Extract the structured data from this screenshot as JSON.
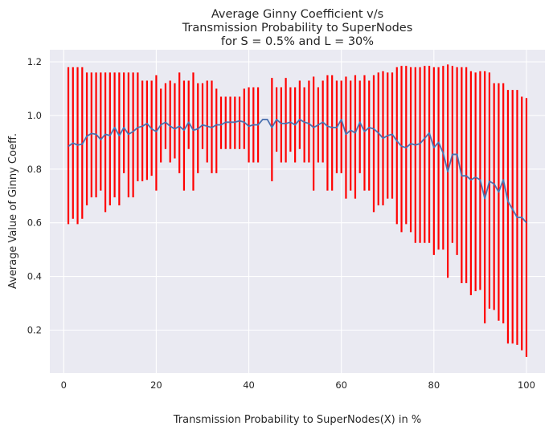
{
  "chart_data": {
    "type": "line",
    "title": [
      "Average Ginny Coefficient v/s",
      "Transmission Probability to SuperNodes",
      "for S = 0.5% and L = 30%"
    ],
    "xlabel": "Transmission Probability to SuperNodes(X) in %",
    "ylabel": "Average Value of Ginny Coeff.",
    "xlim": [
      -3,
      104
    ],
    "ylim": [
      0.04,
      1.245
    ],
    "x_ticks": [
      0,
      20,
      40,
      60,
      80,
      100
    ],
    "y_ticks": [
      0.2,
      0.4,
      0.6,
      0.8,
      1.0,
      1.2
    ],
    "x_tick_labels": [
      "0",
      "20",
      "40",
      "60",
      "80",
      "100"
    ],
    "y_tick_labels": [
      "0.2",
      "0.4",
      "0.6",
      "0.8",
      "1.0",
      "1.2"
    ],
    "grid": true,
    "colors": {
      "background": "#eaeaf2",
      "grid": "#ffffff",
      "line": "#4c72b0",
      "errorbar": "#ff0000"
    },
    "series": [
      {
        "x": [
          1,
          2,
          3,
          4,
          5,
          6,
          7,
          8,
          9,
          10,
          11,
          12,
          13,
          14,
          15,
          16,
          17,
          18,
          19,
          20,
          21,
          22,
          23,
          24,
          25,
          26,
          27,
          28,
          29,
          30,
          31,
          32,
          33,
          34,
          35,
          36,
          37,
          38,
          39,
          40,
          41,
          42,
          43,
          44,
          45,
          46,
          47,
          48,
          49,
          50,
          51,
          52,
          53,
          54,
          55,
          56,
          57,
          58,
          59,
          60,
          61,
          62,
          63,
          64,
          65,
          66,
          67,
          68,
          69,
          70,
          71,
          72,
          73,
          74,
          75,
          76,
          77,
          78,
          79,
          80,
          81,
          82,
          83,
          84,
          85,
          86,
          87,
          88,
          89,
          90,
          91,
          92,
          93,
          94,
          95,
          96,
          97,
          98,
          99,
          100
        ],
        "values": [
          0.885,
          0.897,
          0.89,
          0.893,
          0.923,
          0.933,
          0.93,
          0.91,
          0.93,
          0.925,
          0.955,
          0.925,
          0.955,
          0.93,
          0.94,
          0.955,
          0.96,
          0.97,
          0.95,
          0.94,
          0.965,
          0.975,
          0.96,
          0.95,
          0.96,
          0.945,
          0.975,
          0.945,
          0.95,
          0.965,
          0.96,
          0.955,
          0.965,
          0.965,
          0.975,
          0.975,
          0.975,
          0.98,
          0.975,
          0.96,
          0.965,
          0.965,
          0.985,
          0.985,
          0.955,
          0.985,
          0.97,
          0.97,
          0.975,
          0.965,
          0.985,
          0.975,
          0.97,
          0.955,
          0.965,
          0.975,
          0.96,
          0.955,
          0.955,
          0.985,
          0.93,
          0.945,
          0.935,
          0.975,
          0.94,
          0.955,
          0.95,
          0.935,
          0.915,
          0.925,
          0.93,
          0.905,
          0.885,
          0.88,
          0.895,
          0.89,
          0.895,
          0.915,
          0.935,
          0.88,
          0.9,
          0.86,
          0.79,
          0.855,
          0.855,
          0.775,
          0.775,
          0.76,
          0.77,
          0.76,
          0.69,
          0.755,
          0.745,
          0.715,
          0.76,
          0.68,
          0.65,
          0.62,
          0.62,
          0.6
        ],
        "err_low": [
          0.595,
          0.615,
          0.595,
          0.615,
          0.665,
          0.695,
          0.695,
          0.72,
          0.64,
          0.665,
          0.695,
          0.665,
          0.785,
          0.695,
          0.695,
          0.755,
          0.755,
          0.76,
          0.775,
          0.72,
          0.825,
          0.875,
          0.825,
          0.84,
          0.785,
          0.72,
          0.875,
          0.72,
          0.785,
          0.875,
          0.825,
          0.785,
          0.785,
          0.875,
          0.875,
          0.875,
          0.875,
          0.875,
          0.875,
          0.825,
          0.825,
          0.825,
          0.985,
          0.985,
          0.755,
          0.865,
          0.825,
          0.825,
          0.865,
          0.825,
          0.875,
          0.825,
          0.825,
          0.72,
          0.825,
          0.825,
          0.72,
          0.72,
          0.785,
          0.785,
          0.69,
          0.72,
          0.69,
          0.785,
          0.72,
          0.72,
          0.64,
          0.665,
          0.665,
          0.69,
          0.69,
          0.595,
          0.565,
          0.595,
          0.565,
          0.525,
          0.525,
          0.525,
          0.525,
          0.48,
          0.5,
          0.5,
          0.395,
          0.525,
          0.48,
          0.375,
          0.375,
          0.33,
          0.345,
          0.35,
          0.225,
          0.28,
          0.275,
          0.235,
          0.225,
          0.15,
          0.15,
          0.145,
          0.125,
          0.1
        ],
        "err_high": [
          1.18,
          1.18,
          1.18,
          1.18,
          1.16,
          1.16,
          1.16,
          1.16,
          1.16,
          1.16,
          1.16,
          1.16,
          1.16,
          1.16,
          1.16,
          1.16,
          1.13,
          1.13,
          1.13,
          1.15,
          1.1,
          1.12,
          1.13,
          1.12,
          1.16,
          1.13,
          1.13,
          1.16,
          1.12,
          1.12,
          1.13,
          1.13,
          1.1,
          1.07,
          1.07,
          1.07,
          1.07,
          1.07,
          1.1,
          1.105,
          1.105,
          1.105,
          0.985,
          0.985,
          1.14,
          1.105,
          1.105,
          1.14,
          1.105,
          1.105,
          1.13,
          1.105,
          1.13,
          1.145,
          1.105,
          1.13,
          1.15,
          1.15,
          1.13,
          1.13,
          1.145,
          1.13,
          1.15,
          1.13,
          1.15,
          1.13,
          1.15,
          1.16,
          1.165,
          1.16,
          1.16,
          1.18,
          1.185,
          1.185,
          1.18,
          1.18,
          1.18,
          1.185,
          1.185,
          1.18,
          1.18,
          1.185,
          1.19,
          1.185,
          1.18,
          1.18,
          1.18,
          1.165,
          1.16,
          1.165,
          1.165,
          1.16,
          1.12,
          1.12,
          1.12,
          1.095,
          1.095,
          1.095,
          1.07,
          1.065
        ]
      }
    ]
  }
}
